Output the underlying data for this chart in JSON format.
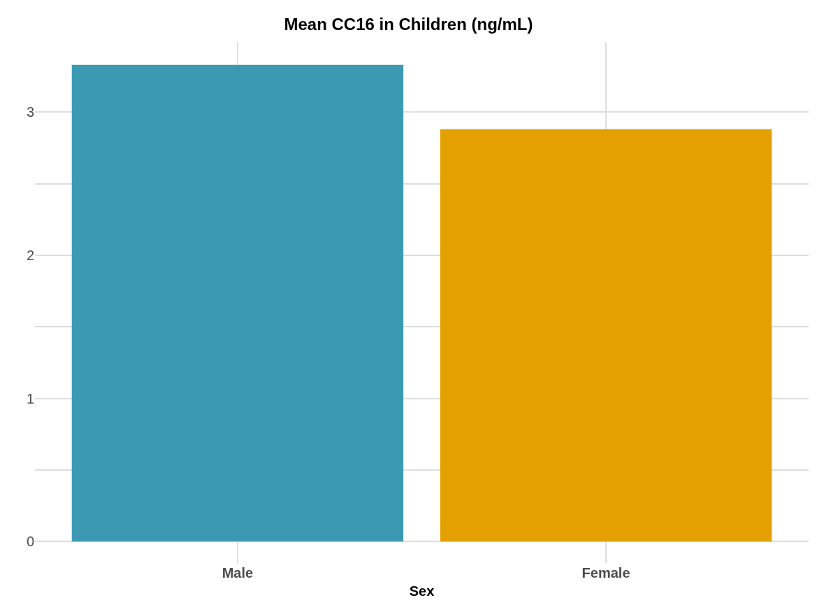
{
  "chart_data": {
    "type": "bar",
    "title": "Mean CC16 in Children (ng/mL)",
    "xlabel": "Sex",
    "categories": [
      "Male",
      "Female"
    ],
    "values": [
      3.33,
      2.88
    ],
    "colors": [
      "#3b9ab2",
      "#e3a000"
    ],
    "ylim": [
      -0.15,
      3.49
    ],
    "yticks": [
      0,
      {
        "value": 0.5,
        "label": null
      },
      1,
      {
        "value": 1.5,
        "label": null
      },
      2,
      {
        "value": 2.5,
        "label": null
      },
      3
    ],
    "grid": true
  }
}
